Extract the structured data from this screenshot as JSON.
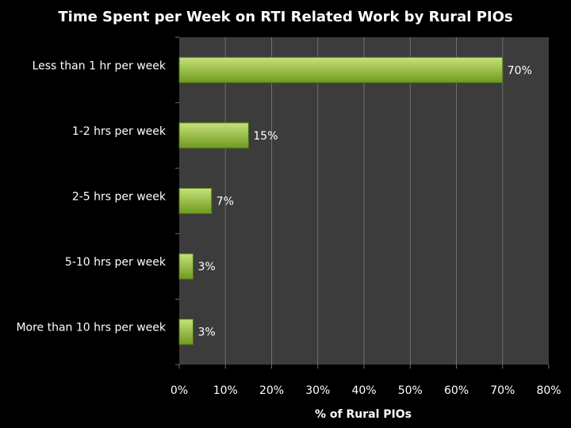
{
  "chart_data": {
    "type": "bar",
    "orientation": "horizontal",
    "title": "Time Spent per Week on RTI Related Work by Rural PIOs",
    "xlabel": "% of Rural PIOs",
    "ylabel": "",
    "categories": [
      "Less than 1 hr per week",
      "1-2 hrs per week",
      "2-5 hrs per week",
      "5-10 hrs per week",
      "More than 10 hrs per week"
    ],
    "values": [
      70,
      15,
      7,
      3,
      3
    ],
    "data_labels": [
      "70%",
      "15%",
      "7%",
      "3%",
      "3%"
    ],
    "xlim": [
      0,
      80
    ],
    "x_ticks": [
      "0%",
      "10%",
      "20%",
      "30%",
      "40%",
      "50%",
      "60%",
      "70%",
      "80%"
    ],
    "grid": "vertical",
    "legend": "none"
  },
  "colors": {
    "page_background": "#000000",
    "plot_background": "#3c3c3c",
    "gridline": "#6e6e6e",
    "bar_fill_top": "#c6e27a",
    "bar_fill_bottom": "#6f9a1f",
    "bar_stroke": "#4f7414",
    "text": "#ffffff"
  }
}
